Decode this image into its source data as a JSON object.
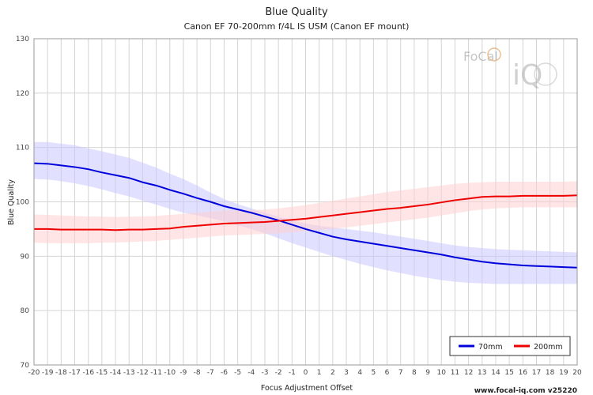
{
  "chart_data": {
    "type": "line",
    "title": "Blue Quality",
    "subtitle": "Canon EF 70-200mm f/4L IS USM (Canon EF mount)",
    "xlabel": "Focus Adjustment Offset",
    "ylabel": "Blue Quality",
    "xlim": [
      -20,
      20
    ],
    "ylim": [
      70,
      130
    ],
    "x_ticks": [
      -20,
      -19,
      -18,
      -17,
      -16,
      -15,
      -14,
      -13,
      -12,
      -11,
      -10,
      -9,
      -8,
      -7,
      -6,
      -5,
      -4,
      -3,
      -2,
      -1,
      0,
      1,
      2,
      3,
      4,
      5,
      6,
      7,
      8,
      9,
      10,
      11,
      12,
      13,
      14,
      15,
      16,
      17,
      18,
      19,
      20
    ],
    "y_ticks": [
      70,
      80,
      90,
      100,
      110,
      120,
      130
    ],
    "grid": true,
    "legend_position": "bottom-right",
    "x": [
      -20,
      -19,
      -18,
      -17,
      -16,
      -15,
      -14,
      -13,
      -12,
      -11,
      -10,
      -9,
      -8,
      -7,
      -6,
      -5,
      -4,
      -3,
      -2,
      -1,
      0,
      1,
      2,
      3,
      4,
      5,
      6,
      7,
      8,
      9,
      10,
      11,
      12,
      13,
      14,
      15,
      16,
      17,
      18,
      19,
      20
    ],
    "series": [
      {
        "name": "70mm",
        "color": "#0000dd",
        "band_color": "#c8c8ff",
        "values": [
          107.1,
          107.0,
          106.7,
          106.4,
          106.0,
          105.4,
          104.9,
          104.4,
          103.6,
          103.0,
          102.2,
          101.5,
          100.7,
          100.0,
          99.2,
          98.6,
          98.0,
          97.3,
          96.6,
          95.8,
          95.0,
          94.3,
          93.6,
          93.1,
          92.7,
          92.3,
          91.9,
          91.5,
          91.1,
          90.7,
          90.3,
          89.8,
          89.4,
          89.0,
          88.7,
          88.5,
          88.3,
          88.2,
          88.1,
          88.0,
          87.9
        ],
        "upper": [
          111.0,
          111.0,
          110.7,
          110.4,
          109.8,
          109.3,
          108.7,
          108.1,
          107.2,
          106.3,
          105.2,
          104.2,
          103.0,
          101.7,
          100.5,
          99.6,
          98.8,
          98.0,
          97.3,
          96.6,
          96.0,
          95.6,
          95.3,
          95.0,
          94.7,
          94.4,
          94.0,
          93.6,
          93.2,
          92.8,
          92.4,
          92.0,
          91.7,
          91.5,
          91.3,
          91.2,
          91.1,
          91.0,
          90.9,
          90.8,
          90.7
        ],
        "lower": [
          104.2,
          104.1,
          103.8,
          103.4,
          102.9,
          102.3,
          101.6,
          101.0,
          100.2,
          99.5,
          98.7,
          98.0,
          97.5,
          97.0,
          96.4,
          95.7,
          95.0,
          94.2,
          93.3,
          92.4,
          91.6,
          90.8,
          90.0,
          89.3,
          88.6,
          88.0,
          87.4,
          86.9,
          86.4,
          86.0,
          85.6,
          85.3,
          85.1,
          85.0,
          84.9,
          84.9,
          84.9,
          84.9,
          84.9,
          84.9,
          84.9
        ]
      },
      {
        "name": "200mm",
        "color": "#ee0000",
        "band_color": "#ffd0d0",
        "values": [
          95.0,
          95.0,
          94.9,
          94.9,
          94.9,
          94.9,
          94.8,
          94.9,
          94.9,
          95.0,
          95.1,
          95.4,
          95.6,
          95.8,
          96.0,
          96.1,
          96.2,
          96.3,
          96.5,
          96.7,
          96.9,
          97.2,
          97.5,
          97.8,
          98.1,
          98.4,
          98.7,
          98.9,
          99.2,
          99.5,
          99.9,
          100.3,
          100.6,
          100.9,
          101.0,
          101.0,
          101.1,
          101.1,
          101.1,
          101.1,
          101.2
        ],
        "upper": [
          97.7,
          97.6,
          97.5,
          97.4,
          97.3,
          97.3,
          97.2,
          97.3,
          97.3,
          97.4,
          97.6,
          97.8,
          98.0,
          98.2,
          98.4,
          98.5,
          98.5,
          98.6,
          98.8,
          99.1,
          99.4,
          99.8,
          100.2,
          100.6,
          101.0,
          101.4,
          101.8,
          102.1,
          102.4,
          102.7,
          103.0,
          103.3,
          103.5,
          103.6,
          103.7,
          103.7,
          103.7,
          103.7,
          103.7,
          103.7,
          103.8
        ],
        "lower": [
          92.5,
          92.4,
          92.4,
          92.4,
          92.4,
          92.5,
          92.5,
          92.6,
          92.7,
          92.8,
          93.0,
          93.2,
          93.4,
          93.6,
          93.8,
          93.9,
          94.0,
          94.1,
          94.2,
          94.4,
          94.6,
          94.8,
          95.0,
          95.3,
          95.6,
          95.9,
          96.2,
          96.5,
          96.8,
          97.1,
          97.5,
          97.9,
          98.3,
          98.6,
          98.8,
          98.9,
          99.0,
          99.0,
          99.0,
          99.0,
          99.0
        ]
      }
    ]
  },
  "watermark": {
    "logo_top": "FoCal",
    "logo_bottom": "iQ",
    "credit": "www.focal-iq.com  v25220"
  }
}
